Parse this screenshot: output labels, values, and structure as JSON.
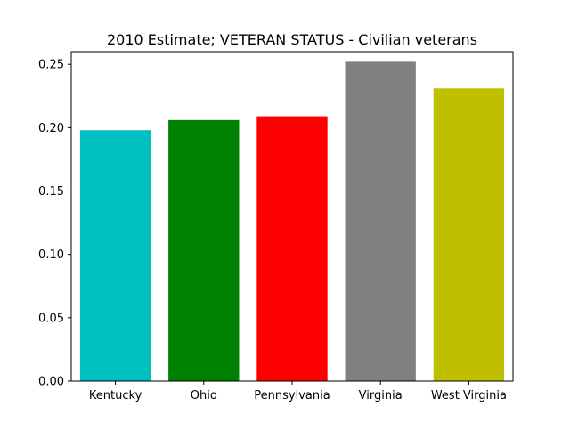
{
  "chart_data": {
    "type": "bar",
    "title": "2010 Estimate; VETERAN STATUS - Civilian veterans",
    "xlabel": "",
    "ylabel": "",
    "categories": [
      "Kentucky",
      "Ohio",
      "Pennsylvania",
      "Virginia",
      "West Virginia"
    ],
    "values": [
      0.198,
      0.206,
      0.209,
      0.252,
      0.231
    ],
    "colors": [
      "#00bfbf",
      "#008000",
      "#ff0000",
      "#808080",
      "#bfbf00"
    ],
    "ylim": [
      0,
      0.26
    ],
    "yticks": [
      "0.00",
      "0.05",
      "0.10",
      "0.15",
      "0.20",
      "0.25"
    ],
    "grid": false,
    "legend": "none"
  }
}
